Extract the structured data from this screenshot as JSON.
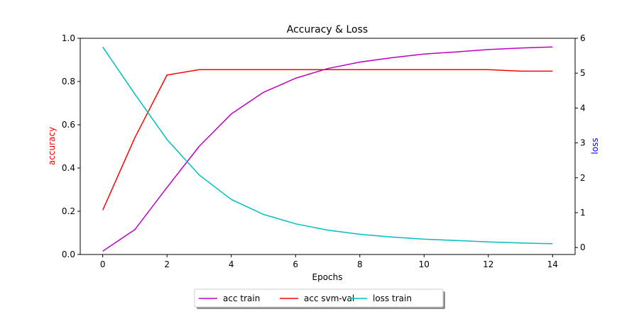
{
  "chart_data": {
    "type": "line",
    "title": "Accuracy & Loss",
    "xlabel": "Epochs",
    "ylabel_left": "accuracy",
    "ylabel_right": "loss",
    "ylabel_left_color": "#ff0000",
    "ylabel_right_color": "#0000ff",
    "x": [
      0,
      1,
      2,
      3,
      4,
      5,
      6,
      7,
      8,
      9,
      10,
      11,
      12,
      13,
      14
    ],
    "xlim": [
      -0.7,
      14.7
    ],
    "ylim_left": [
      0.0,
      1.0
    ],
    "ylim_right": [
      -0.2,
      6.0
    ],
    "x_ticks": [
      0,
      2,
      4,
      6,
      8,
      10,
      12,
      14
    ],
    "y_left_ticks": [
      "0.0",
      "0.2",
      "0.4",
      "0.6",
      "0.8",
      "1.0"
    ],
    "y_right_ticks": [
      "0",
      "1",
      "2",
      "3",
      "4",
      "5",
      "6"
    ],
    "grid": false,
    "legend_position": "bottom-center",
    "series": [
      {
        "name": "acc train",
        "axis": "left",
        "color": "#bf00bf",
        "values": [
          0.015,
          0.115,
          0.31,
          0.5,
          0.65,
          0.75,
          0.815,
          0.86,
          0.89,
          0.91,
          0.927,
          0.937,
          0.948,
          0.955,
          0.96
        ]
      },
      {
        "name": "acc svm-val",
        "axis": "left",
        "color": "#ff0000",
        "values": [
          0.205,
          0.54,
          0.83,
          0.855,
          0.855,
          0.855,
          0.855,
          0.855,
          0.855,
          0.855,
          0.855,
          0.855,
          0.855,
          0.848,
          0.848
        ]
      },
      {
        "name": "loss train",
        "axis": "right",
        "color": "#00bfbf",
        "values": [
          5.75,
          4.4,
          3.1,
          2.08,
          1.38,
          0.95,
          0.68,
          0.5,
          0.38,
          0.3,
          0.24,
          0.2,
          0.16,
          0.13,
          0.11
        ]
      }
    ]
  }
}
